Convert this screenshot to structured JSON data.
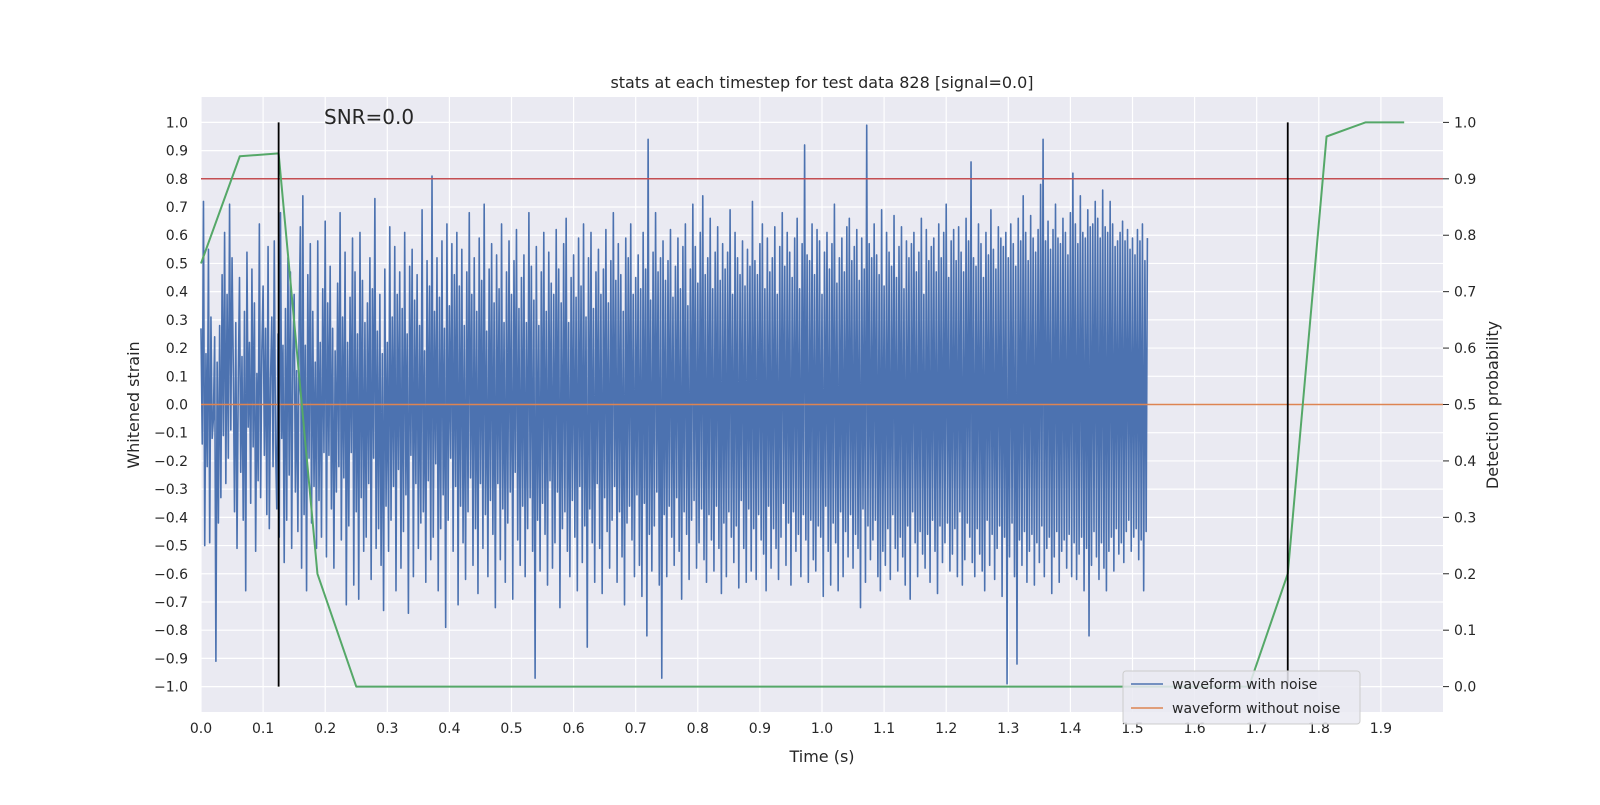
{
  "chart_data": {
    "type": "line",
    "title": "stats at each timestep for test data 828 [signal=0.0]",
    "annotation": "SNR=0.0",
    "xlabel": "Time (s)",
    "ylabel_left": "Whitened strain",
    "ylabel_right": "Detection probability",
    "xlim": [
      0.0,
      2.0
    ],
    "ylim_left": [
      -1.09,
      1.09
    ],
    "ylim_right": [
      -0.045,
      1.045
    ],
    "x_ticks": [
      "0.0",
      "0.1",
      "0.2",
      "0.3",
      "0.4",
      "0.5",
      "0.6",
      "0.7",
      "0.8",
      "0.9",
      "1.0",
      "1.1",
      "1.2",
      "1.3",
      "1.4",
      "1.5",
      "1.6",
      "1.7",
      "1.8",
      "1.9"
    ],
    "y_left_ticks": [
      "1.0",
      "0.9",
      "0.8",
      "0.7",
      "0.6",
      "0.5",
      "0.4",
      "0.3",
      "0.2",
      "0.1",
      "0.0",
      "-0.1",
      "-0.2",
      "-0.3",
      "-0.4",
      "-0.5",
      "-0.6",
      "-0.7",
      "-0.8",
      "-0.9",
      "-1.0"
    ],
    "y_right_ticks": [
      "1.0",
      "0.9",
      "0.8",
      "0.7",
      "0.6",
      "0.5",
      "0.4",
      "0.3",
      "0.2",
      "0.1",
      "0.0"
    ],
    "grid": true,
    "legend_position": "bottom-right",
    "colors": {
      "noisy": "#4c72b0",
      "clean": "#dd8452",
      "probability": "#55a868",
      "threshold": "#c44e52",
      "marker": "#000000",
      "background": "#eaeaf2",
      "grid": "#ffffff"
    },
    "series": [
      {
        "name": "waveform with noise",
        "axis": "left",
        "x_start": 0.0,
        "x_step": 0.002,
        "values": [
          0.27,
          -0.14,
          0.72,
          -0.5,
          0.18,
          -0.22,
          0.55,
          -0.49,
          0.31,
          -0.12,
          -0.05,
          0.24,
          -0.91,
          0.15,
          -0.42,
          0.28,
          -0.33,
          0.46,
          -0.11,
          0.61,
          -0.28,
          0.39,
          -0.19,
          0.71,
          -0.09,
          0.52,
          0.13,
          -0.38,
          0.29,
          -0.51,
          0.08,
          0.45,
          -0.24,
          0.17,
          -0.41,
          0.33,
          -0.66,
          0.54,
          -0.08,
          0.22,
          -0.35,
          0.48,
          -0.15,
          0.36,
          -0.52,
          0.11,
          -0.27,
          0.64,
          -0.33,
          0.19,
          0.42,
          -0.18,
          0.27,
          -0.39,
          0.56,
          -0.44,
          0.09,
          0.31,
          -0.22,
          0.58,
          -0.14,
          -0.37,
          0.25,
          -0.47,
          0.68,
          -0.12,
          0.21,
          -0.56,
          0.34,
          -0.41,
          0.52,
          -0.25,
          0.47,
          -0.51,
          0.18,
          0.39,
          -0.31,
          0.12,
          -0.45,
          0.29,
          0.63,
          -0.58,
          0.74,
          -0.39,
          0.21,
          -0.66,
          0.46,
          -0.19,
          0.57,
          -0.42,
          0.33,
          -0.29,
          0.15,
          -0.51,
          0.58,
          -0.34,
          0.22,
          -0.47,
          0.41,
          -0.17,
          0.65,
          -0.54,
          0.36,
          -0.18,
          0.49,
          -0.37,
          0.27,
          -0.58,
          0.19,
          -0.31,
          0.43,
          -0.22,
          0.68,
          -0.48,
          0.31,
          -0.26,
          0.54,
          -0.71,
          0.22,
          -0.43,
          0.38,
          -0.17,
          0.59,
          -0.64,
          0.47,
          -0.38,
          0.25,
          -0.69,
          0.61,
          -0.33,
          0.44,
          -0.52,
          0.29,
          -0.47,
          0.36,
          -0.28,
          0.52,
          -0.62,
          0.41,
          -0.19,
          0.73,
          -0.51,
          0.26,
          -0.44,
          0.39,
          -0.57,
          0.18,
          -0.73,
          0.48,
          -0.36,
          0.22,
          -0.52,
          0.63,
          -0.41,
          0.31,
          -0.29,
          0.56,
          -0.66,
          0.39,
          -0.23,
          0.47,
          -0.58,
          0.34,
          -0.45,
          0.61,
          -0.32,
          0.25,
          -0.74,
          0.49,
          -0.18,
          0.55,
          -0.61,
          0.37,
          -0.28,
          0.46,
          -0.51,
          0.28,
          -0.42,
          0.69,
          -0.38,
          0.19,
          -0.63,
          0.51,
          -0.27,
          0.42,
          -0.55,
          0.81,
          -0.47,
          0.33,
          -0.21,
          0.52,
          -0.66,
          0.38,
          -0.44,
          0.58,
          -0.32,
          0.27,
          -0.79,
          0.64,
          -0.41,
          0.35,
          -0.19,
          0.57,
          -0.52,
          0.46,
          -0.29,
          0.61,
          -0.71,
          0.42,
          -0.36,
          0.55,
          -0.49,
          0.28,
          -0.62,
          0.47,
          -0.38,
          0.68,
          -0.26,
          0.39,
          -0.57,
          0.52,
          -0.44,
          0.33,
          -0.67,
          0.59,
          -0.28,
          0.44,
          -0.51,
          0.71,
          -0.39,
          0.26,
          -0.61,
          0.48,
          -0.34,
          0.57,
          -0.46,
          0.36,
          -0.72,
          0.53,
          -0.28,
          0.41,
          -0.55,
          0.64,
          -0.37,
          0.29,
          -0.63,
          0.47,
          -0.42,
          0.58,
          -0.31,
          0.39,
          -0.69,
          0.51,
          -0.24,
          0.62,
          -0.48,
          0.34,
          -0.57,
          0.45,
          -0.36,
          0.53,
          -0.61,
          0.29,
          -0.44,
          0.68,
          -0.33,
          0.49,
          -0.52,
          0.37,
          -0.97,
          0.56,
          -0.41,
          0.28,
          -0.59,
          0.47,
          -0.35,
          0.61,
          -0.46,
          0.33,
          -0.64,
          0.54,
          -0.27,
          0.43,
          -0.58,
          0.39,
          -0.49,
          0.62,
          -0.31,
          0.48,
          -0.72,
          0.36,
          -0.44,
          0.57,
          -0.38,
          0.66,
          -0.52,
          0.29,
          -0.61,
          0.45,
          -0.34,
          0.53,
          -0.47,
          0.38,
          -0.66,
          0.59,
          -0.29,
          0.42,
          -0.56,
          0.64,
          -0.43,
          0.31,
          -0.86,
          0.52,
          -0.37,
          0.61,
          -0.49,
          0.34,
          -0.63,
          0.47,
          -0.28,
          0.55,
          -0.51,
          0.39,
          -0.67,
          0.48,
          -0.33,
          0.62,
          -0.45,
          0.36,
          -0.58,
          0.51,
          -0.41,
          0.68,
          -0.29,
          0.44,
          -0.63,
          0.57,
          -0.38,
          0.46,
          -0.54,
          0.33,
          -0.71,
          0.59,
          -0.42,
          0.52,
          -0.36,
          0.64,
          -0.48,
          0.39,
          -0.61,
          0.45,
          -0.32,
          0.53,
          -0.57,
          0.41,
          -0.68,
          0.61,
          -0.35,
          0.48,
          -0.82,
          0.94,
          -0.46,
          0.37,
          -0.59,
          0.54,
          -0.43,
          0.68,
          -0.31,
          0.47,
          -0.64,
          0.52,
          -0.97,
          0.58,
          -0.39,
          0.44,
          -0.61,
          0.51,
          -0.36,
          0.62,
          -0.47,
          0.38,
          -0.57,
          0.49,
          -0.33,
          0.59,
          -0.52,
          0.41,
          -0.69,
          0.56,
          -0.38,
          0.64,
          -0.46,
          0.35,
          -0.62,
          0.48,
          -0.41,
          0.71,
          -0.34,
          0.56,
          -0.58,
          0.43,
          -0.49,
          0.61,
          -0.37,
          0.74,
          -0.55,
          0.46,
          -0.63,
          0.52,
          -0.39,
          0.66,
          -0.48,
          0.41,
          -0.59,
          0.54,
          -0.36,
          0.63,
          -0.51,
          0.44,
          -0.67,
          0.57,
          -0.42,
          0.48,
          -0.61,
          0.54,
          -0.38,
          0.69,
          -0.47,
          0.39,
          -0.56,
          0.61,
          -0.43,
          0.52,
          -0.65,
          0.46,
          -0.34,
          0.58,
          -0.51,
          0.42,
          -0.63,
          0.55,
          -0.37,
          0.49,
          -0.59,
          0.72,
          -0.44,
          0.51,
          -0.62,
          0.46,
          -0.39,
          0.57,
          -0.48,
          0.64,
          -0.53,
          0.41,
          -0.66,
          0.59,
          -0.36,
          0.47,
          -0.58,
          0.52,
          -0.44,
          0.63,
          -0.51,
          0.39,
          -0.62,
          0.56,
          -0.47,
          0.68,
          -0.35,
          0.49,
          -0.57,
          0.61,
          -0.42,
          0.54,
          -0.64,
          0.45,
          -0.38,
          0.59,
          -0.52,
          0.66,
          -0.46,
          0.41,
          -0.61,
          0.57,
          -0.39,
          0.92,
          -0.48,
          0.53,
          -0.63,
          0.51,
          -0.41,
          0.64,
          -0.55,
          0.46,
          -0.59,
          0.62,
          -0.43,
          0.58,
          -0.47,
          0.39,
          -0.68,
          0.54,
          -0.36,
          0.61,
          -0.52,
          0.48,
          -0.64,
          0.57,
          -0.42,
          0.71,
          -0.49,
          0.43,
          -0.66,
          0.52,
          -0.38,
          0.59,
          -0.61,
          0.47,
          -0.45,
          0.63,
          -0.54,
          0.66,
          -0.39,
          0.51,
          -0.58,
          0.56,
          -0.46,
          0.62,
          -0.51,
          0.44,
          -0.72,
          0.59,
          -0.37,
          0.48,
          -0.63,
          0.99,
          -0.43,
          0.57,
          -0.55,
          0.52,
          -0.48,
          0.64,
          -0.41,
          0.53,
          -0.61,
          0.46,
          -0.66,
          0.69,
          -0.52,
          0.42,
          -0.57,
          0.61,
          -0.44,
          0.54,
          -0.62,
          0.49,
          -0.39,
          0.67,
          -0.51,
          0.45,
          -0.59,
          0.56,
          -0.47,
          0.63,
          -0.54,
          0.41,
          -0.64,
          0.58,
          -0.43,
          0.52,
          -0.69,
          0.57,
          -0.38,
          0.61,
          -0.49,
          0.47,
          -0.61,
          0.54,
          -0.45,
          0.66,
          -0.53,
          0.39,
          -0.58,
          0.62,
          -0.46,
          0.51,
          -0.63,
          0.56,
          -0.41,
          0.59,
          -0.52,
          0.47,
          -0.67,
          0.64,
          -0.43,
          0.52,
          -0.56,
          0.61,
          -0.49,
          0.71,
          -0.42,
          0.45,
          -0.59,
          0.58,
          -0.53,
          0.62,
          -0.44,
          0.51,
          -0.61,
          0.63,
          -0.38,
          0.54,
          -0.64,
          0.47,
          -0.55,
          0.66,
          -0.42,
          0.58,
          -0.47,
          0.86,
          -0.56,
          0.52,
          -0.61,
          0.49,
          -0.44,
          0.64,
          -0.53,
          0.57,
          -0.59,
          0.45,
          -0.66,
          0.61,
          -0.41,
          0.53,
          -0.57,
          0.69,
          -0.46,
          0.55,
          -0.62,
          0.48,
          -0.51,
          0.63,
          -0.43,
          0.59,
          -0.68,
          0.56,
          -0.47,
          0.61,
          -0.99,
          0.52,
          -0.54,
          0.64,
          -0.42,
          0.57,
          -0.61,
          0.49,
          -0.92,
          0.66,
          -0.48,
          0.58,
          -0.57,
          0.74,
          -0.45,
          0.61,
          -0.63,
          0.51,
          -0.52,
          0.67,
          -0.46,
          0.59,
          -0.64,
          0.54,
          -0.49,
          0.62,
          -0.56,
          0.78,
          -0.43,
          0.94,
          -0.61,
          0.58,
          -0.51,
          0.65,
          -0.47,
          0.55,
          -0.67,
          0.62,
          -0.54,
          0.71,
          -0.45,
          0.59,
          -0.63,
          0.57,
          -0.52,
          0.66,
          -0.48,
          0.61,
          -0.58,
          0.53,
          -0.46,
          0.68,
          -0.61,
          0.82,
          -0.49,
          0.64,
          -0.62,
          0.57,
          -0.53,
          0.74,
          -0.47,
          0.61,
          -0.66,
          0.59,
          -0.51,
          0.69,
          -0.82,
          0.63,
          -0.57,
          0.64,
          -0.45,
          0.72,
          -0.54,
          0.66,
          -0.62,
          0.59,
          -0.49,
          0.76,
          -0.58,
          0.63,
          -0.66,
          0.61,
          -0.52,
          0.72,
          -0.47,
          0.64,
          -0.59,
          0.56,
          -0.44,
          0.58,
          -0.53,
          0.61,
          -0.49,
          0.65,
          -0.56,
          0.58,
          -0.45,
          0.62,
          -0.41,
          0.55,
          -0.52,
          0.59,
          -0.47,
          0.53,
          -0.44,
          0.62,
          -0.55,
          0.58,
          -0.48,
          0.64,
          -0.66,
          0.51,
          -0.45,
          0.59
        ]
      },
      {
        "name": "waveform without noise",
        "axis": "left",
        "x": [
          0.0,
          2.0
        ],
        "y": [
          0.0,
          0.0
        ]
      },
      {
        "name": "",
        "axis": "right",
        "x": [
          0.0,
          0.0625,
          0.125,
          0.1875,
          0.25,
          0.3125,
          0.375,
          0.4375,
          0.5,
          0.5625,
          0.625,
          0.6875,
          0.75,
          0.8125,
          0.875,
          0.9375,
          1.0,
          1.0625,
          1.125,
          1.1875,
          1.25,
          1.3125,
          1.375,
          1.4375,
          1.5,
          1.5625,
          1.625,
          1.6875,
          1.75,
          1.8125,
          1.875,
          1.9375
        ],
        "y": [
          0.75,
          0.94,
          0.945,
          0.2,
          0.0,
          0.0,
          0.0,
          0.0,
          0.0,
          0.0,
          0.0,
          0.0,
          0.0,
          0.0,
          0.0,
          0.0,
          0.0,
          0.0,
          0.0,
          0.0,
          0.0,
          0.0,
          0.0,
          0.0,
          0.0,
          0.0,
          0.0,
          0.0,
          0.2,
          0.975,
          1.0,
          1.0
        ]
      }
    ],
    "threshold_right": 0.9,
    "markers_x": [
      0.125,
      1.75
    ]
  }
}
